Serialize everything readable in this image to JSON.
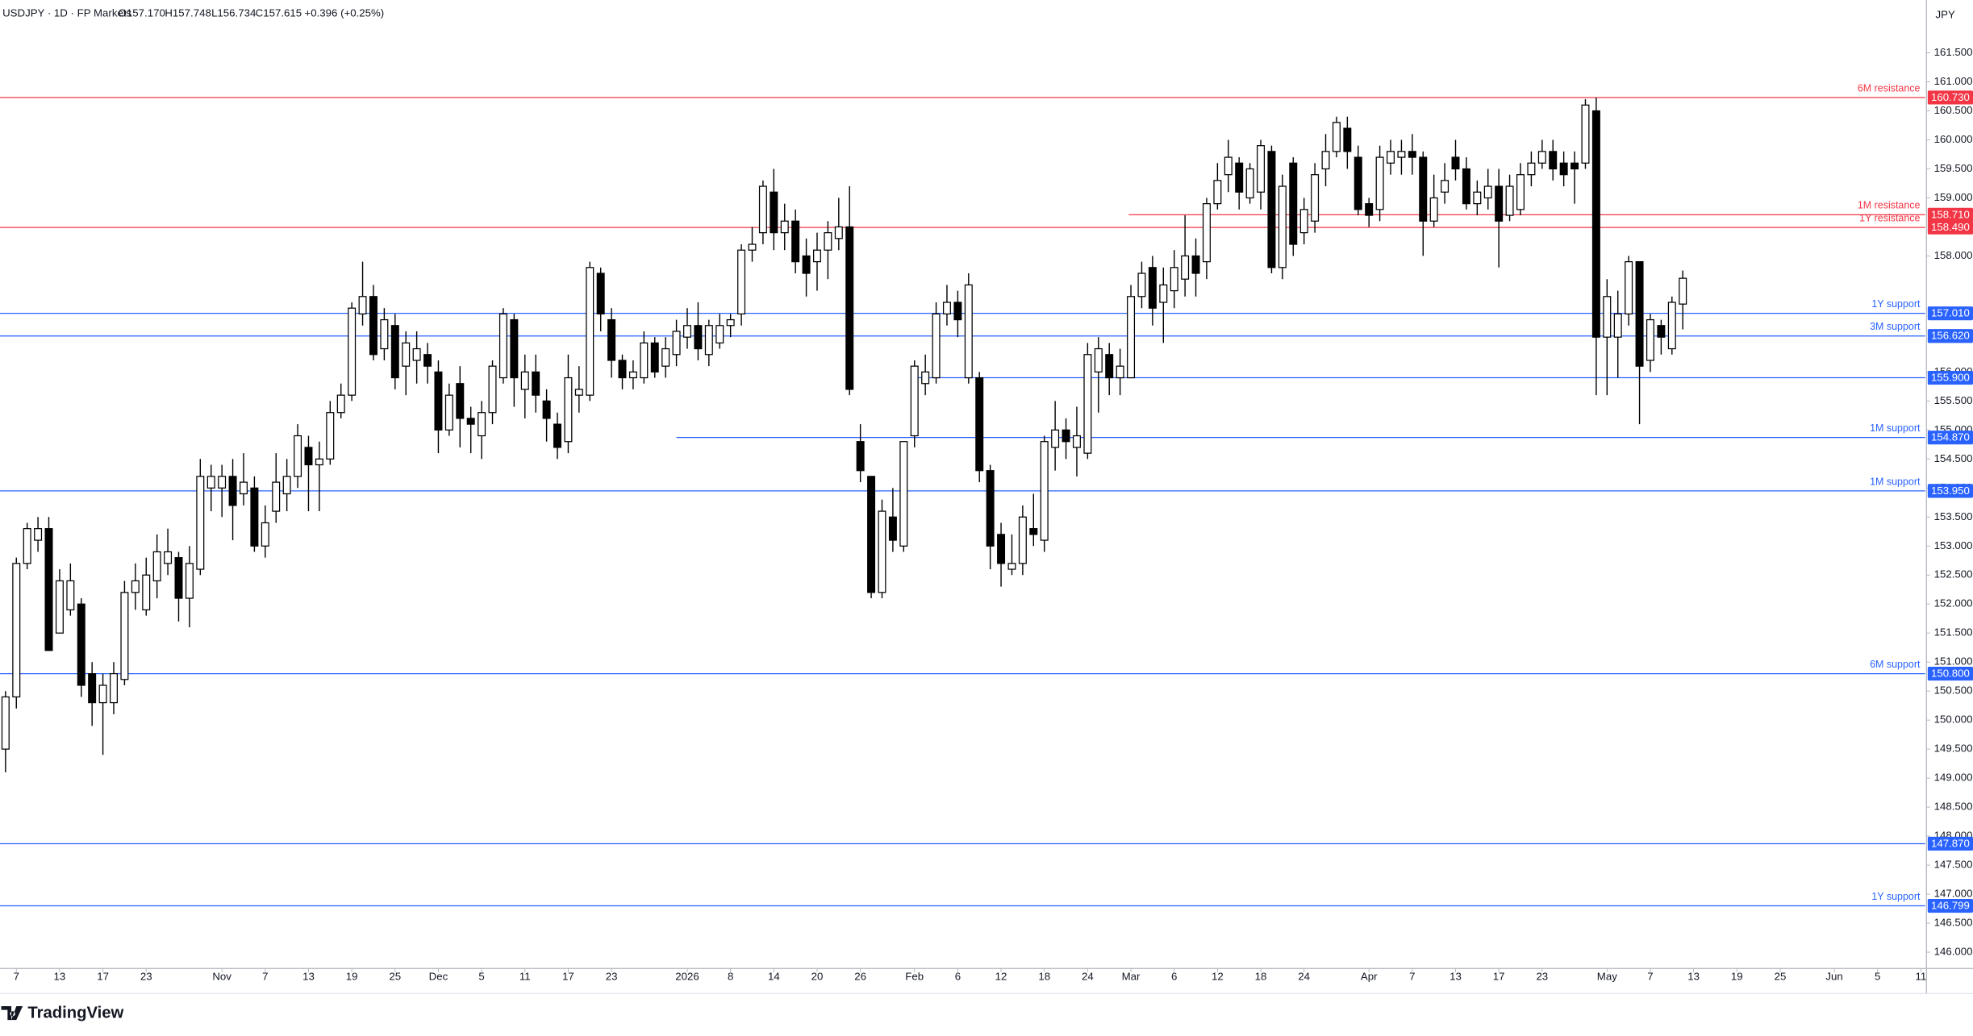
{
  "header": {
    "symbol": "USDJPY · 1D · FP Markets",
    "open": "O157.170",
    "high": "H157.748",
    "low": "L156.734",
    "close": "C157.615",
    "change": "+0.396 (+0.25%)"
  },
  "brand": "TradingView",
  "chart_data": {
    "type": "candlestick",
    "unit_label": "JPY",
    "up_color": "#ffffff",
    "down_color": "#000000",
    "wick_color": "#000000",
    "xlim": [
      -0.51,
      177.4
    ],
    "ylim": [
      145.72,
      162.41
    ],
    "open": [
      149.5,
      150.4,
      152.7,
      153.1,
      153.3,
      151.5,
      151.9,
      152.0,
      150.8,
      150.3,
      150.3,
      150.7,
      152.2,
      151.9,
      152.4,
      152.7,
      152.8,
      152.1,
      152.6,
      154.0,
      154.0,
      154.2,
      153.9,
      154.0,
      153.0,
      153.6,
      153.9,
      154.2,
      154.7,
      154.4,
      154.5,
      155.3,
      155.6,
      157.0,
      157.3,
      156.4,
      156.8,
      156.1,
      156.2,
      156.3,
      156.0,
      155.0,
      155.8,
      155.2,
      154.9,
      155.3,
      155.9,
      156.9,
      155.7,
      156.0,
      155.5,
      155.1,
      154.8,
      155.6,
      155.6,
      157.7,
      156.9,
      156.2,
      155.9,
      155.9,
      156.5,
      156.1,
      156.3,
      156.6,
      156.8,
      156.3,
      156.5,
      156.8,
      157.0,
      158.1,
      158.4,
      159.1,
      158.4,
      158.6,
      158.0,
      157.9,
      158.1,
      158.3,
      158.5,
      154.8,
      154.2,
      152.2,
      153.5,
      153.0,
      154.9,
      155.8,
      155.9,
      157.0,
      157.2,
      155.9,
      155.9,
      154.3,
      153.2,
      152.6,
      152.7,
      153.3,
      153.1,
      154.7,
      155.0,
      154.7,
      154.6,
      156.0,
      156.3,
      155.9,
      155.9,
      157.3,
      157.8,
      157.2,
      157.4,
      157.6,
      158.0,
      157.9,
      158.9,
      159.4,
      159.6,
      159.0,
      159.1,
      159.8,
      157.8,
      159.6,
      158.4,
      158.6,
      159.5,
      159.8,
      160.2,
      159.7,
      158.9,
      158.8,
      159.6,
      159.7,
      159.8,
      159.7,
      158.6,
      159.1,
      159.7,
      159.5,
      158.9,
      159.0,
      159.2,
      158.7,
      158.8,
      159.4,
      159.6,
      159.8,
      159.6,
      159.6,
      159.6,
      160.5,
      156.6,
      156.6,
      157.0,
      157.9,
      156.2,
      156.8,
      156.4,
      157.17
    ],
    "high": [
      150.5,
      152.8,
      153.4,
      153.5,
      153.5,
      152.6,
      152.7,
      152.1,
      151.0,
      150.8,
      151.0,
      152.4,
      152.7,
      152.8,
      153.2,
      153.3,
      152.9,
      153.0,
      154.5,
      154.4,
      154.4,
      154.5,
      154.6,
      154.2,
      153.7,
      154.6,
      154.5,
      155.1,
      154.9,
      154.8,
      155.5,
      155.8,
      157.2,
      157.9,
      157.5,
      157.1,
      157.0,
      156.7,
      156.7,
      156.5,
      156.2,
      155.8,
      156.1,
      155.4,
      155.5,
      156.2,
      157.1,
      157.0,
      156.3,
      156.3,
      155.7,
      155.3,
      156.3,
      156.1,
      157.9,
      157.8,
      157.1,
      156.3,
      156.2,
      156.7,
      156.6,
      156.6,
      156.9,
      157.1,
      157.2,
      156.9,
      157.0,
      157.0,
      158.2,
      158.5,
      159.3,
      159.5,
      158.9,
      158.8,
      158.3,
      158.4,
      158.6,
      159.0,
      159.2,
      155.1,
      154.2,
      153.8,
      154.0,
      154.8,
      156.2,
      156.3,
      157.2,
      157.5,
      157.4,
      157.7,
      156.0,
      154.4,
      153.4,
      153.2,
      153.7,
      153.9,
      154.9,
      155.5,
      155.2,
      155.4,
      156.5,
      156.6,
      156.5,
      156.4,
      157.5,
      157.9,
      158.0,
      157.8,
      158.1,
      158.7,
      158.3,
      159.0,
      159.6,
      160.0,
      159.7,
      159.6,
      160.0,
      159.9,
      159.4,
      159.7,
      159.0,
      159.6,
      160.1,
      160.4,
      160.4,
      159.9,
      159.0,
      159.9,
      160.0,
      160.0,
      160.1,
      159.8,
      159.4,
      159.6,
      160.0,
      159.7,
      159.3,
      159.5,
      159.5,
      159.4,
      159.6,
      159.8,
      160.0,
      160.0,
      159.8,
      159.8,
      160.7,
      160.73,
      157.6,
      157.4,
      158.0,
      157.9,
      157.0,
      156.9,
      157.3,
      157.748
    ],
    "low": [
      149.1,
      150.2,
      152.6,
      152.9,
      151.2,
      151.5,
      151.8,
      150.4,
      149.9,
      149.4,
      150.1,
      150.6,
      151.9,
      151.8,
      152.1,
      152.5,
      151.7,
      151.6,
      152.5,
      153.6,
      153.5,
      153.1,
      153.7,
      152.9,
      152.8,
      153.4,
      153.6,
      154.0,
      153.6,
      153.6,
      154.4,
      155.2,
      155.5,
      156.8,
      156.2,
      156.2,
      155.7,
      155.6,
      155.8,
      155.8,
      154.6,
      154.9,
      154.7,
      154.6,
      154.5,
      155.1,
      155.8,
      155.4,
      155.2,
      155.3,
      154.8,
      154.5,
      154.6,
      155.3,
      155.5,
      156.7,
      155.9,
      155.7,
      155.7,
      155.8,
      155.9,
      155.9,
      156.1,
      156.4,
      156.2,
      156.1,
      156.4,
      156.6,
      156.8,
      157.9,
      158.2,
      158.1,
      158.1,
      157.7,
      157.3,
      157.4,
      157.6,
      158.1,
      155.6,
      154.1,
      152.1,
      152.1,
      152.9,
      152.9,
      154.7,
      155.6,
      155.8,
      156.8,
      156.6,
      155.8,
      154.1,
      152.6,
      152.3,
      152.5,
      152.5,
      153.0,
      152.9,
      154.3,
      154.5,
      154.2,
      154.5,
      155.3,
      155.6,
      155.6,
      155.9,
      157.1,
      156.8,
      156.5,
      157.1,
      157.3,
      157.3,
      157.6,
      158.8,
      159.1,
      158.8,
      158.9,
      158.8,
      157.7,
      157.6,
      158.0,
      158.2,
      158.4,
      159.2,
      159.7,
      159.5,
      158.7,
      158.5,
      158.6,
      159.4,
      159.4,
      159.4,
      158.0,
      158.5,
      158.9,
      159.3,
      158.8,
      158.7,
      158.8,
      157.8,
      158.6,
      158.7,
      159.2,
      159.5,
      159.3,
      159.2,
      158.9,
      159.5,
      155.6,
      155.6,
      155.9,
      156.8,
      155.1,
      156.0,
      156.3,
      156.3,
      156.734
    ],
    "close": [
      150.4,
      152.7,
      153.3,
      153.3,
      151.2,
      152.4,
      152.4,
      150.6,
      150.3,
      150.6,
      150.8,
      152.2,
      152.4,
      152.5,
      152.9,
      152.9,
      152.1,
      152.7,
      154.2,
      154.2,
      154.2,
      153.7,
      154.1,
      153.0,
      153.4,
      154.1,
      154.2,
      154.9,
      154.4,
      154.5,
      155.3,
      155.6,
      157.1,
      157.3,
      156.3,
      156.9,
      155.9,
      156.5,
      156.4,
      156.1,
      155.0,
      155.6,
      155.2,
      155.1,
      155.3,
      156.1,
      157.0,
      155.9,
      156.0,
      155.6,
      155.2,
      154.7,
      155.9,
      155.7,
      157.8,
      157.0,
      156.2,
      155.9,
      156.0,
      156.5,
      156.0,
      156.4,
      156.7,
      156.8,
      156.4,
      156.8,
      156.8,
      156.9,
      158.1,
      158.2,
      159.2,
      158.4,
      158.6,
      157.9,
      157.7,
      158.1,
      158.4,
      158.5,
      155.7,
      154.3,
      152.2,
      153.6,
      153.1,
      154.8,
      156.1,
      156.0,
      157.0,
      157.2,
      156.9,
      157.5,
      154.3,
      153.0,
      152.7,
      152.7,
      153.5,
      153.2,
      154.8,
      155.0,
      154.8,
      154.9,
      156.3,
      156.4,
      155.9,
      156.1,
      157.3,
      157.7,
      157.1,
      157.5,
      157.8,
      158.0,
      157.7,
      158.9,
      159.3,
      159.7,
      159.1,
      159.5,
      159.9,
      157.8,
      159.2,
      158.2,
      158.8,
      159.4,
      159.8,
      160.3,
      159.8,
      158.8,
      158.7,
      159.7,
      159.8,
      159.8,
      159.7,
      158.6,
      159.0,
      159.3,
      159.5,
      158.9,
      159.1,
      159.2,
      158.6,
      159.2,
      159.4,
      159.6,
      159.8,
      159.5,
      159.4,
      159.5,
      160.6,
      156.6,
      157.3,
      157.0,
      157.9,
      156.1,
      156.9,
      156.6,
      157.2,
      157.615
    ],
    "yticks": [
      {
        "value": 146.0,
        "label": "146.000"
      },
      {
        "value": 146.5,
        "label": "146.500"
      },
      {
        "value": 147.0,
        "label": "147.000"
      },
      {
        "value": 147.5,
        "label": "147.500"
      },
      {
        "value": 148.0,
        "label": "148.000"
      },
      {
        "value": 148.5,
        "label": "148.500"
      },
      {
        "value": 149.0,
        "label": "149.000"
      },
      {
        "value": 149.5,
        "label": "149.500"
      },
      {
        "value": 150.0,
        "label": "150.000"
      },
      {
        "value": 150.5,
        "label": "150.500"
      },
      {
        "value": 151.0,
        "label": "151.000"
      },
      {
        "value": 151.5,
        "label": "151.500"
      },
      {
        "value": 152.0,
        "label": "152.000"
      },
      {
        "value": 152.5,
        "label": "152.500"
      },
      {
        "value": 153.0,
        "label": "153.000"
      },
      {
        "value": 153.5,
        "label": "153.500"
      },
      {
        "value": 154.0,
        "label": "154.000"
      },
      {
        "value": 154.5,
        "label": "154.500"
      },
      {
        "value": 155.0,
        "label": "155.000"
      },
      {
        "value": 155.5,
        "label": "155.500"
      },
      {
        "value": 156.0,
        "label": "156.000"
      },
      {
        "value": 158.0,
        "label": "158.000"
      },
      {
        "value": 159.0,
        "label": "159.000"
      },
      {
        "value": 159.5,
        "label": "159.500"
      },
      {
        "value": 160.0,
        "label": "160.000"
      },
      {
        "value": 160.5,
        "label": "160.500"
      },
      {
        "value": 161.0,
        "label": "161.000"
      },
      {
        "value": 161.5,
        "label": "161.500"
      }
    ],
    "xticks": [
      {
        "value": 1,
        "label": "7"
      },
      {
        "value": 5,
        "label": "13"
      },
      {
        "value": 9,
        "label": "17"
      },
      {
        "value": 13,
        "label": "23"
      },
      {
        "value": 20,
        "label": "Nov"
      },
      {
        "value": 24,
        "label": "7"
      },
      {
        "value": 28,
        "label": "13"
      },
      {
        "value": 32,
        "label": "19"
      },
      {
        "value": 36,
        "label": "25"
      },
      {
        "value": 40,
        "label": "Dec"
      },
      {
        "value": 44,
        "label": "5"
      },
      {
        "value": 48,
        "label": "11"
      },
      {
        "value": 52,
        "label": "17"
      },
      {
        "value": 56,
        "label": "23"
      },
      {
        "value": 63,
        "label": "2026"
      },
      {
        "value": 67,
        "label": "8"
      },
      {
        "value": 71,
        "label": "14"
      },
      {
        "value": 75,
        "label": "20"
      },
      {
        "value": 79,
        "label": "26"
      },
      {
        "value": 84,
        "label": "Feb"
      },
      {
        "value": 88,
        "label": "6"
      },
      {
        "value": 92,
        "label": "12"
      },
      {
        "value": 96,
        "label": "18"
      },
      {
        "value": 100,
        "label": "24"
      },
      {
        "value": 104,
        "label": "Mar"
      },
      {
        "value": 108,
        "label": "6"
      },
      {
        "value": 112,
        "label": "12"
      },
      {
        "value": 116,
        "label": "18"
      },
      {
        "value": 120,
        "label": "24"
      },
      {
        "value": 126,
        "label": "Apr"
      },
      {
        "value": 130,
        "label": "7"
      },
      {
        "value": 134,
        "label": "13"
      },
      {
        "value": 138,
        "label": "17"
      },
      {
        "value": 142,
        "label": "23"
      },
      {
        "value": 148,
        "label": "May"
      },
      {
        "value": 152,
        "label": "7"
      },
      {
        "value": 156,
        "label": "13"
      },
      {
        "value": 160,
        "label": "19"
      },
      {
        "value": 164,
        "label": "25"
      },
      {
        "value": 169,
        "label": "Jun"
      },
      {
        "value": 173,
        "label": "5"
      },
      {
        "value": 177,
        "label": "11"
      }
    ],
    "levels": [
      {
        "price": 160.73,
        "price_label": "160.730",
        "label": "6M resistance",
        "color": "#f23645"
      },
      {
        "price": 158.71,
        "price_label": "158.710",
        "label": "1M resistance",
        "color": "#f23645",
        "from": 103.8
      },
      {
        "price": 158.49,
        "price_label": "158.490",
        "label": "1Y resistance",
        "color": "#f23645"
      },
      {
        "price": 157.01,
        "price_label": "157.010",
        "label": "1Y support",
        "color": "#2962ff"
      },
      {
        "price": 156.62,
        "price_label": "156.620",
        "label": "3M support",
        "color": "#2962ff"
      },
      {
        "price": 155.9,
        "price_label": "155.900",
        "color": "#2962ff",
        "from": 83.8
      },
      {
        "price": 154.87,
        "price_label": "154.870",
        "label": "1M support",
        "color": "#2962ff",
        "from": 62
      },
      {
        "price": 153.95,
        "price_label": "153.950",
        "label": "1M support",
        "color": "#2962ff"
      },
      {
        "price": 150.8,
        "price_label": "150.800",
        "label": "6M support",
        "color": "#2962ff"
      },
      {
        "price": 147.87,
        "price_label": "147.870",
        "color": "#2962ff"
      },
      {
        "price": 146.799,
        "price_label": "146.799",
        "label": "1Y support",
        "color": "#2962ff"
      }
    ]
  }
}
